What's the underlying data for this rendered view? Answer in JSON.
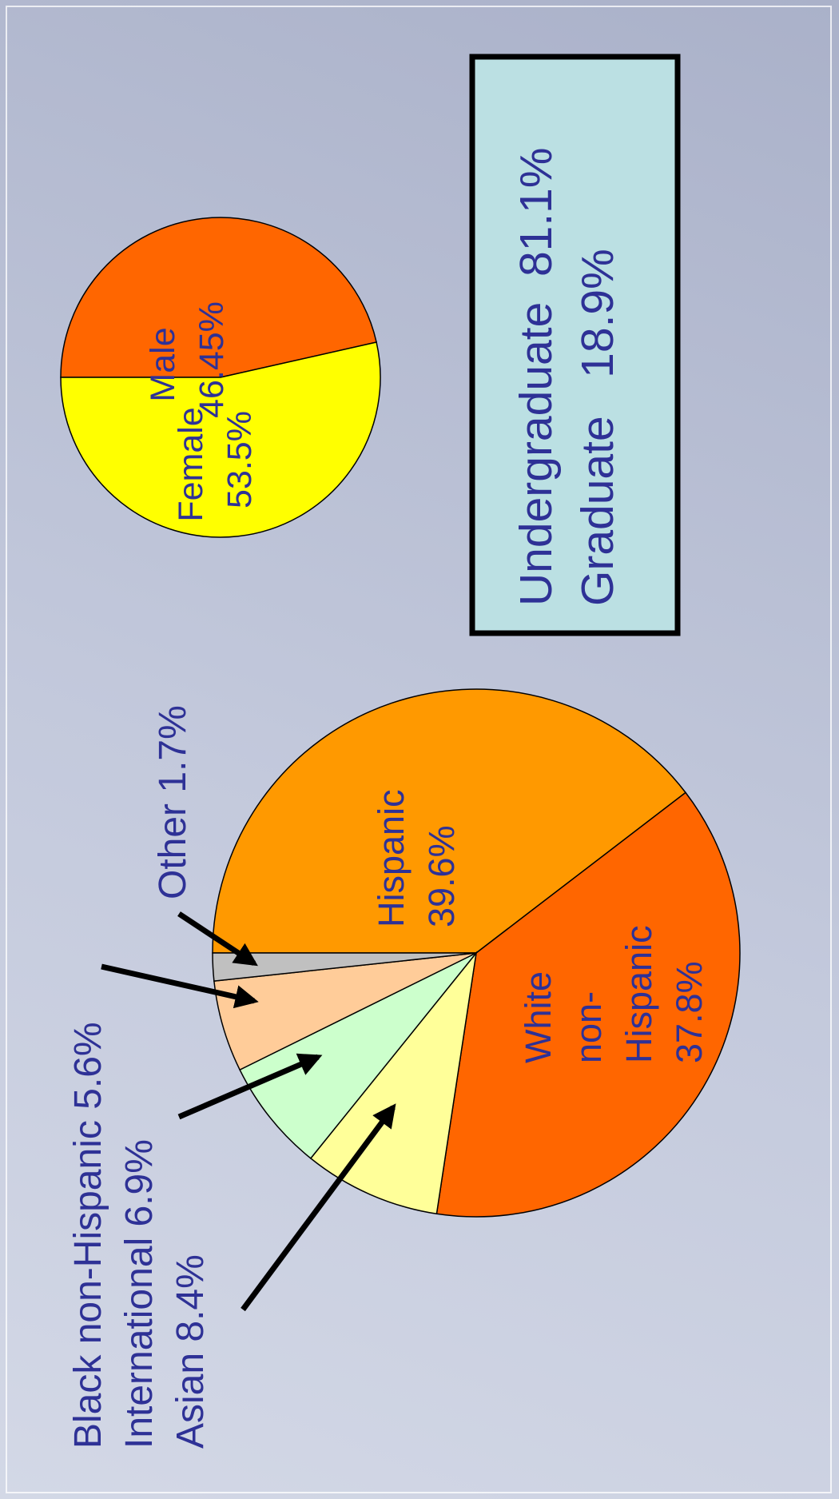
{
  "chart_data": [
    {
      "type": "pie",
      "slices": [
        {
          "name": "Hispanic",
          "value": 39.6,
          "color": "#FF9900"
        },
        {
          "name": "White non-Hispanic",
          "value": 37.8,
          "color": "#FF6600"
        },
        {
          "name": "Asian",
          "value": 8.4,
          "color": "#FFFF99"
        },
        {
          "name": "International",
          "value": 6.9,
          "color": "#CCFFCC"
        },
        {
          "name": "Black non-Hispanic",
          "value": 5.6,
          "color": "#FFCC99"
        },
        {
          "name": "Other",
          "value": 1.7,
          "color": "#C0C0C0"
        }
      ],
      "labels": {
        "hispanic": [
          "Hispanic",
          "39.6%"
        ],
        "white": [
          "White",
          "non-",
          "Hispanic",
          "37.8%"
        ],
        "other": "Other 1.7%",
        "black": "Black non-Hispanic 5.6%",
        "international": "International 6.9%",
        "asian": "Asian 8.4%"
      }
    },
    {
      "type": "pie",
      "slices": [
        {
          "name": "Male",
          "value": 46.45,
          "color": "#FF6600"
        },
        {
          "name": "Female",
          "value": 53.5,
          "color": "#FFFF00"
        }
      ],
      "labels": {
        "male": [
          "Male",
          "46.45%"
        ],
        "female": [
          "Female",
          "53.5%"
        ]
      }
    }
  ],
  "enrollment_box": {
    "line1": "Undergraduate  81.1%",
    "line2": "Graduate   18.9%",
    "background": "#BBE0E3"
  },
  "colors": {
    "label_text": "#2E3196",
    "arrow": "#000000"
  }
}
